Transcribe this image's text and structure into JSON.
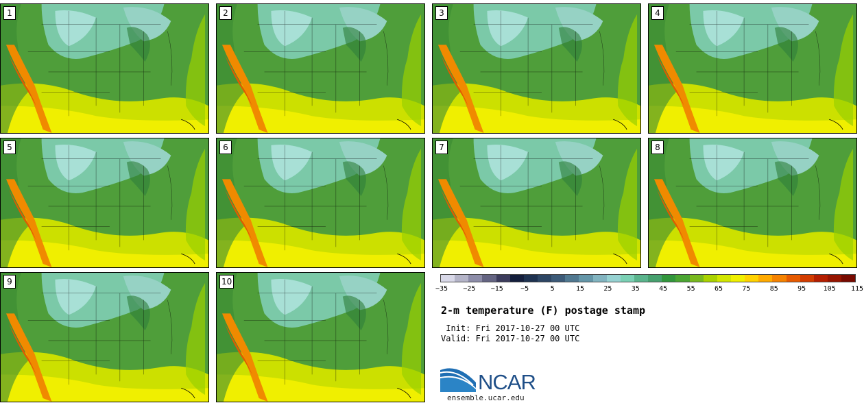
{
  "stamps": [
    {
      "label": "1"
    },
    {
      "label": "2"
    },
    {
      "label": "3"
    },
    {
      "label": "4"
    },
    {
      "label": "5"
    },
    {
      "label": "6"
    },
    {
      "label": "7"
    },
    {
      "label": "8"
    },
    {
      "label": "9"
    },
    {
      "label": "10"
    }
  ],
  "colorbar": {
    "colors": [
      "#d8d8e8",
      "#b4b4c8",
      "#8c8ca8",
      "#646482",
      "#3c3c5c",
      "#141e3c",
      "#1e3250",
      "#2d4664",
      "#3c5a78",
      "#507890",
      "#6496a8",
      "#82b4c0",
      "#96d2d2",
      "#7ad0b4",
      "#5ab48c",
      "#46a06e",
      "#32963c",
      "#4ba532",
      "#78b91e",
      "#aad200",
      "#d2e600",
      "#f0f000",
      "#ffd200",
      "#ffaa00",
      "#f58200",
      "#e65a00",
      "#d23c00",
      "#b41e00",
      "#961400",
      "#780a00"
    ],
    "ticks": [
      "−35",
      "−25",
      "−15",
      "−5",
      "5",
      "15",
      "25",
      "35",
      "45",
      "55",
      "65",
      "75",
      "85",
      "95",
      "105",
      "115"
    ]
  },
  "title": "2-m temperature (F) postage stamp",
  "init": " Init: Fri 2017-10-27 00 UTC",
  "valid": "Valid: Fri 2017-10-27 00 UTC",
  "logo": {
    "text": "NCAR",
    "url": "ensemble.ucar.edu",
    "accent": "#1f6fb4"
  }
}
